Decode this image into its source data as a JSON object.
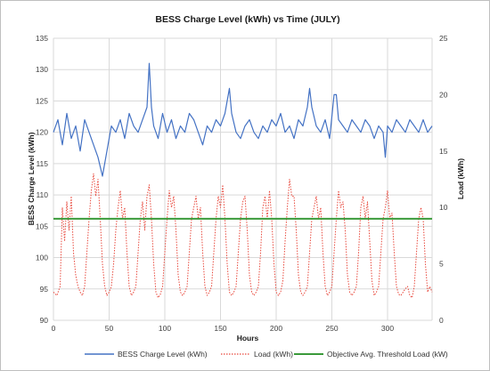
{
  "chart_data": {
    "type": "line",
    "title": "BESS Charge Level (kWh) vs Time (JULY)",
    "xlabel": "Hours",
    "ylabel_left": "BESS Charge Level (kWh)",
    "ylabel_right": "Load (kWh)",
    "xlim": [
      0,
      340
    ],
    "x_ticks": [
      "0",
      "50",
      "100",
      "150",
      "200",
      "250",
      "300"
    ],
    "ylim_left": [
      90,
      135
    ],
    "y_ticks_left": [
      "90",
      "95",
      "100",
      "105",
      "110",
      "115",
      "120",
      "125",
      "130",
      "135"
    ],
    "ylim_right": [
      0,
      25
    ],
    "y_ticks_right": [
      "0",
      "5",
      "10",
      "15",
      "20",
      "25"
    ],
    "grid": true,
    "legend_position": "bottom",
    "series": [
      {
        "name": "BESS Charge Level (kWh)",
        "axis": "left",
        "color": "#4472c4",
        "style": "solid",
        "x": [
          0,
          4,
          8,
          12,
          16,
          20,
          24,
          28,
          32,
          36,
          40,
          44,
          48,
          52,
          56,
          60,
          64,
          68,
          72,
          76,
          80,
          84,
          86,
          88,
          90,
          94,
          98,
          102,
          106,
          110,
          114,
          118,
          122,
          126,
          130,
          134,
          138,
          142,
          146,
          150,
          154,
          156,
          158,
          160,
          164,
          168,
          172,
          176,
          180,
          184,
          188,
          192,
          196,
          200,
          204,
          208,
          212,
          216,
          220,
          224,
          228,
          230,
          232,
          236,
          240,
          244,
          248,
          252,
          254,
          256,
          260,
          264,
          268,
          272,
          276,
          280,
          284,
          288,
          292,
          296,
          298,
          300,
          304,
          308,
          312,
          316,
          320,
          324,
          328,
          332,
          336,
          340
        ],
        "values": [
          120,
          122,
          118,
          123,
          119,
          121,
          117,
          122,
          120,
          118,
          116,
          113,
          117,
          121,
          120,
          122,
          119,
          123,
          121,
          120,
          122,
          124,
          131,
          124,
          121,
          119,
          123,
          120,
          122,
          119,
          121,
          120,
          123,
          122,
          120,
          118,
          121,
          120,
          122,
          121,
          123,
          125,
          127,
          123,
          120,
          119,
          121,
          122,
          120,
          119,
          121,
          120,
          122,
          121,
          123,
          120,
          121,
          119,
          122,
          121,
          124,
          127,
          124,
          121,
          120,
          122,
          119,
          126,
          126,
          122,
          121,
          120,
          122,
          121,
          120,
          122,
          121,
          119,
          121,
          120,
          116,
          121,
          120,
          122,
          121,
          120,
          122,
          121,
          120,
          122,
          120,
          121
        ]
      },
      {
        "name": "Load (kWh)",
        "axis": "right",
        "color": "#e8483c",
        "style": "dotted",
        "x": [
          0,
          3,
          6,
          8,
          10,
          12,
          14,
          16,
          18,
          20,
          22,
          24,
          26,
          28,
          30,
          32,
          34,
          36,
          38,
          40,
          42,
          44,
          46,
          48,
          50,
          52,
          54,
          56,
          58,
          60,
          62,
          64,
          66,
          68,
          70,
          72,
          74,
          76,
          78,
          80,
          82,
          84,
          86,
          88,
          90,
          92,
          94,
          96,
          98,
          100,
          102,
          104,
          106,
          108,
          110,
          112,
          114,
          116,
          118,
          120,
          122,
          124,
          126,
          128,
          130,
          132,
          134,
          136,
          138,
          140,
          142,
          144,
          146,
          148,
          150,
          152,
          154,
          156,
          158,
          160,
          162,
          164,
          166,
          168,
          170,
          172,
          174,
          176,
          178,
          180,
          182,
          184,
          186,
          188,
          190,
          192,
          194,
          196,
          198,
          200,
          202,
          204,
          206,
          208,
          210,
          212,
          214,
          216,
          218,
          220,
          222,
          224,
          226,
          228,
          230,
          232,
          234,
          236,
          238,
          240,
          242,
          244,
          246,
          248,
          250,
          252,
          254,
          256,
          258,
          260,
          262,
          264,
          266,
          268,
          270,
          272,
          274,
          276,
          278,
          280,
          282,
          284,
          286,
          288,
          290,
          292,
          294,
          296,
          298,
          300,
          302,
          304,
          306,
          308,
          310,
          312,
          314,
          316,
          318,
          320,
          322,
          324,
          326,
          328,
          330,
          332,
          334,
          336,
          338,
          340
        ],
        "values": [
          2.5,
          2.2,
          3.0,
          10.0,
          7.0,
          10.5,
          8.0,
          11.0,
          6.0,
          4.0,
          3.0,
          2.5,
          2.2,
          3.0,
          6.0,
          9.0,
          11.5,
          13.0,
          11.0,
          12.5,
          9.0,
          5.0,
          3.0,
          2.2,
          2.5,
          3.0,
          5.0,
          8.0,
          10.0,
          11.5,
          9.0,
          10.0,
          6.0,
          3.0,
          2.2,
          2.5,
          3.0,
          6.0,
          9.0,
          10.5,
          8.0,
          11.0,
          12.0,
          9.0,
          5.0,
          2.5,
          2.0,
          2.3,
          3.0,
          6.0,
          9.0,
          11.5,
          10.0,
          11.0,
          8.0,
          4.0,
          2.5,
          2.2,
          2.5,
          3.0,
          6.0,
          9.0,
          10.0,
          11.0,
          9.0,
          10.0,
          6.0,
          3.0,
          2.2,
          2.5,
          3.0,
          6.0,
          9.0,
          11.0,
          10.0,
          12.0,
          9.0,
          5.0,
          2.5,
          2.2,
          2.5,
          3.0,
          6.0,
          9.0,
          10.5,
          11.0,
          8.0,
          4.0,
          2.5,
          2.2,
          2.5,
          3.0,
          6.0,
          10.0,
          11.0,
          9.0,
          11.5,
          9.0,
          5.0,
          2.5,
          2.2,
          2.5,
          3.5,
          7.0,
          10.0,
          12.5,
          11.0,
          11.0,
          8.0,
          4.0,
          2.5,
          2.2,
          2.5,
          3.0,
          6.0,
          9.0,
          10.0,
          11.0,
          9.0,
          10.0,
          6.0,
          3.0,
          2.2,
          2.5,
          3.0,
          6.0,
          9.0,
          11.5,
          10.0,
          10.5,
          8.0,
          4.0,
          2.5,
          2.2,
          2.5,
          3.0,
          6.0,
          10.0,
          11.0,
          9.0,
          10.5,
          7.0,
          3.5,
          2.2,
          2.5,
          3.0,
          6.0,
          9.0,
          10.0,
          11.5,
          9.0,
          9.5,
          6.0,
          3.0,
          2.3,
          2.2,
          2.5,
          2.8,
          3.0,
          2.2,
          2.0,
          3.0,
          6.0,
          9.0,
          10.0,
          9.0,
          5.0,
          2.5,
          3.0,
          2.5
        ]
      },
      {
        "name": "Objective Avg. Threshold Load (kW)",
        "axis": "right",
        "color": "#3a9a3a",
        "style": "solid",
        "x": [
          0,
          340
        ],
        "values": [
          9.0,
          9.0
        ]
      }
    ]
  }
}
